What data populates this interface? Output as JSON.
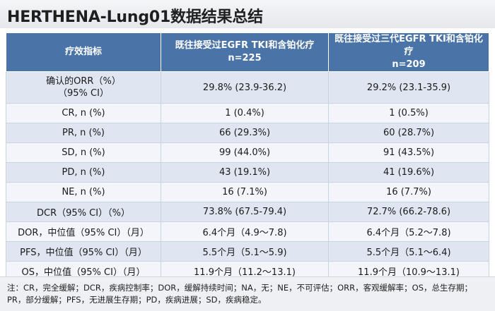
{
  "title": "HERTHENA-Lung01数据结果总结",
  "table": {
    "headers": [
      "疗效指标",
      "既往接受过EGFR TKI和含铂化疗\nn=225",
      "既往接受过三代EGFR TKI和含铂化疗\nn=209"
    ],
    "rows": [
      [
        "确认的ORR（%）\n（95% CI）",
        "29.8% (23.9-36.2)",
        "29.2% (23.1-35.9)"
      ],
      [
        "CR, n (%)",
        "1 (0.4%)",
        "1 (0.5%)"
      ],
      [
        "PR, n (%)",
        "66 (29.3%)",
        "60 (28.7%)"
      ],
      [
        "SD, n (%)",
        "99 (44.0%)",
        "91 (43.5%)"
      ],
      [
        "PD, n (%)",
        "43 (19.1%)",
        "41 (19.6%)"
      ],
      [
        "NE, n (%)",
        "16 (7.1%)",
        "16 (7.7%)"
      ],
      [
        "DCR（95% CI）（%）",
        "73.8% (67.5-79.4)",
        "72.7% (66.2-78.6)"
      ],
      [
        "DOR，中位值（95% CI）（月）",
        "6.4个月（4.9～7.8)",
        "6.4个月（5.2～7.8)"
      ],
      [
        "PFS，中位值（95% CI）（月）",
        "5.5个月（5.1～5.9)",
        "5.5个月（5.1～6.4)"
      ],
      [
        "OS，中位值（95% CI）（月）",
        "11.9个月（11.2～13.1)",
        "11.9个月（10.9～13.1)"
      ]
    ]
  },
  "footnote": "注：CR，完全缓解；DCR，疾病控制率；DOR，缓解持续时间；NA，无；NE，不可评估；ORR，客观缓解率；OS，总生存期；PR，部分缓解；PFS，无进展生存期；PD，疾病进展；SD，疾病稳定。"
}
